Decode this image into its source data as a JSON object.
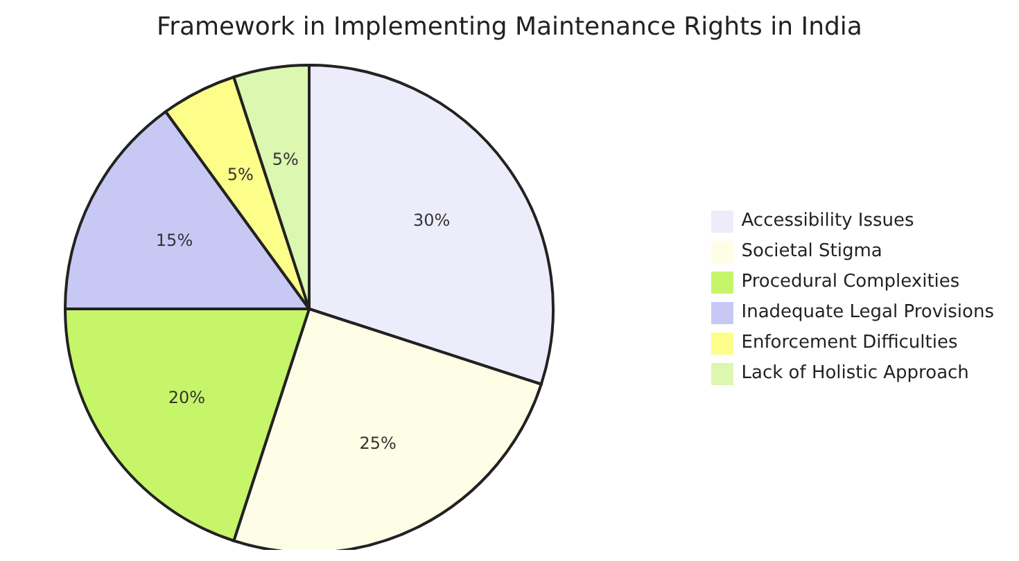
{
  "chart_data": {
    "type": "pie",
    "title": "Framework in Implementing Maintenance Rights in India",
    "categories": [
      "Accessibility Issues",
      "Societal Stigma",
      "Procedural Complexities",
      "Inadequate Legal Provisions",
      "Enforcement Difficulties",
      "Lack of Holistic Approach"
    ],
    "values": [
      30,
      25,
      20,
      15,
      5,
      5
    ],
    "colors": [
      "#ececfb",
      "#fefee6",
      "#c6f56a",
      "#c8c8f5",
      "#fdfd8a",
      "#dcf7b0"
    ],
    "value_labels": [
      "30%",
      "25%",
      "20%",
      "15%",
      "5%",
      "5%"
    ],
    "legend": "right"
  }
}
